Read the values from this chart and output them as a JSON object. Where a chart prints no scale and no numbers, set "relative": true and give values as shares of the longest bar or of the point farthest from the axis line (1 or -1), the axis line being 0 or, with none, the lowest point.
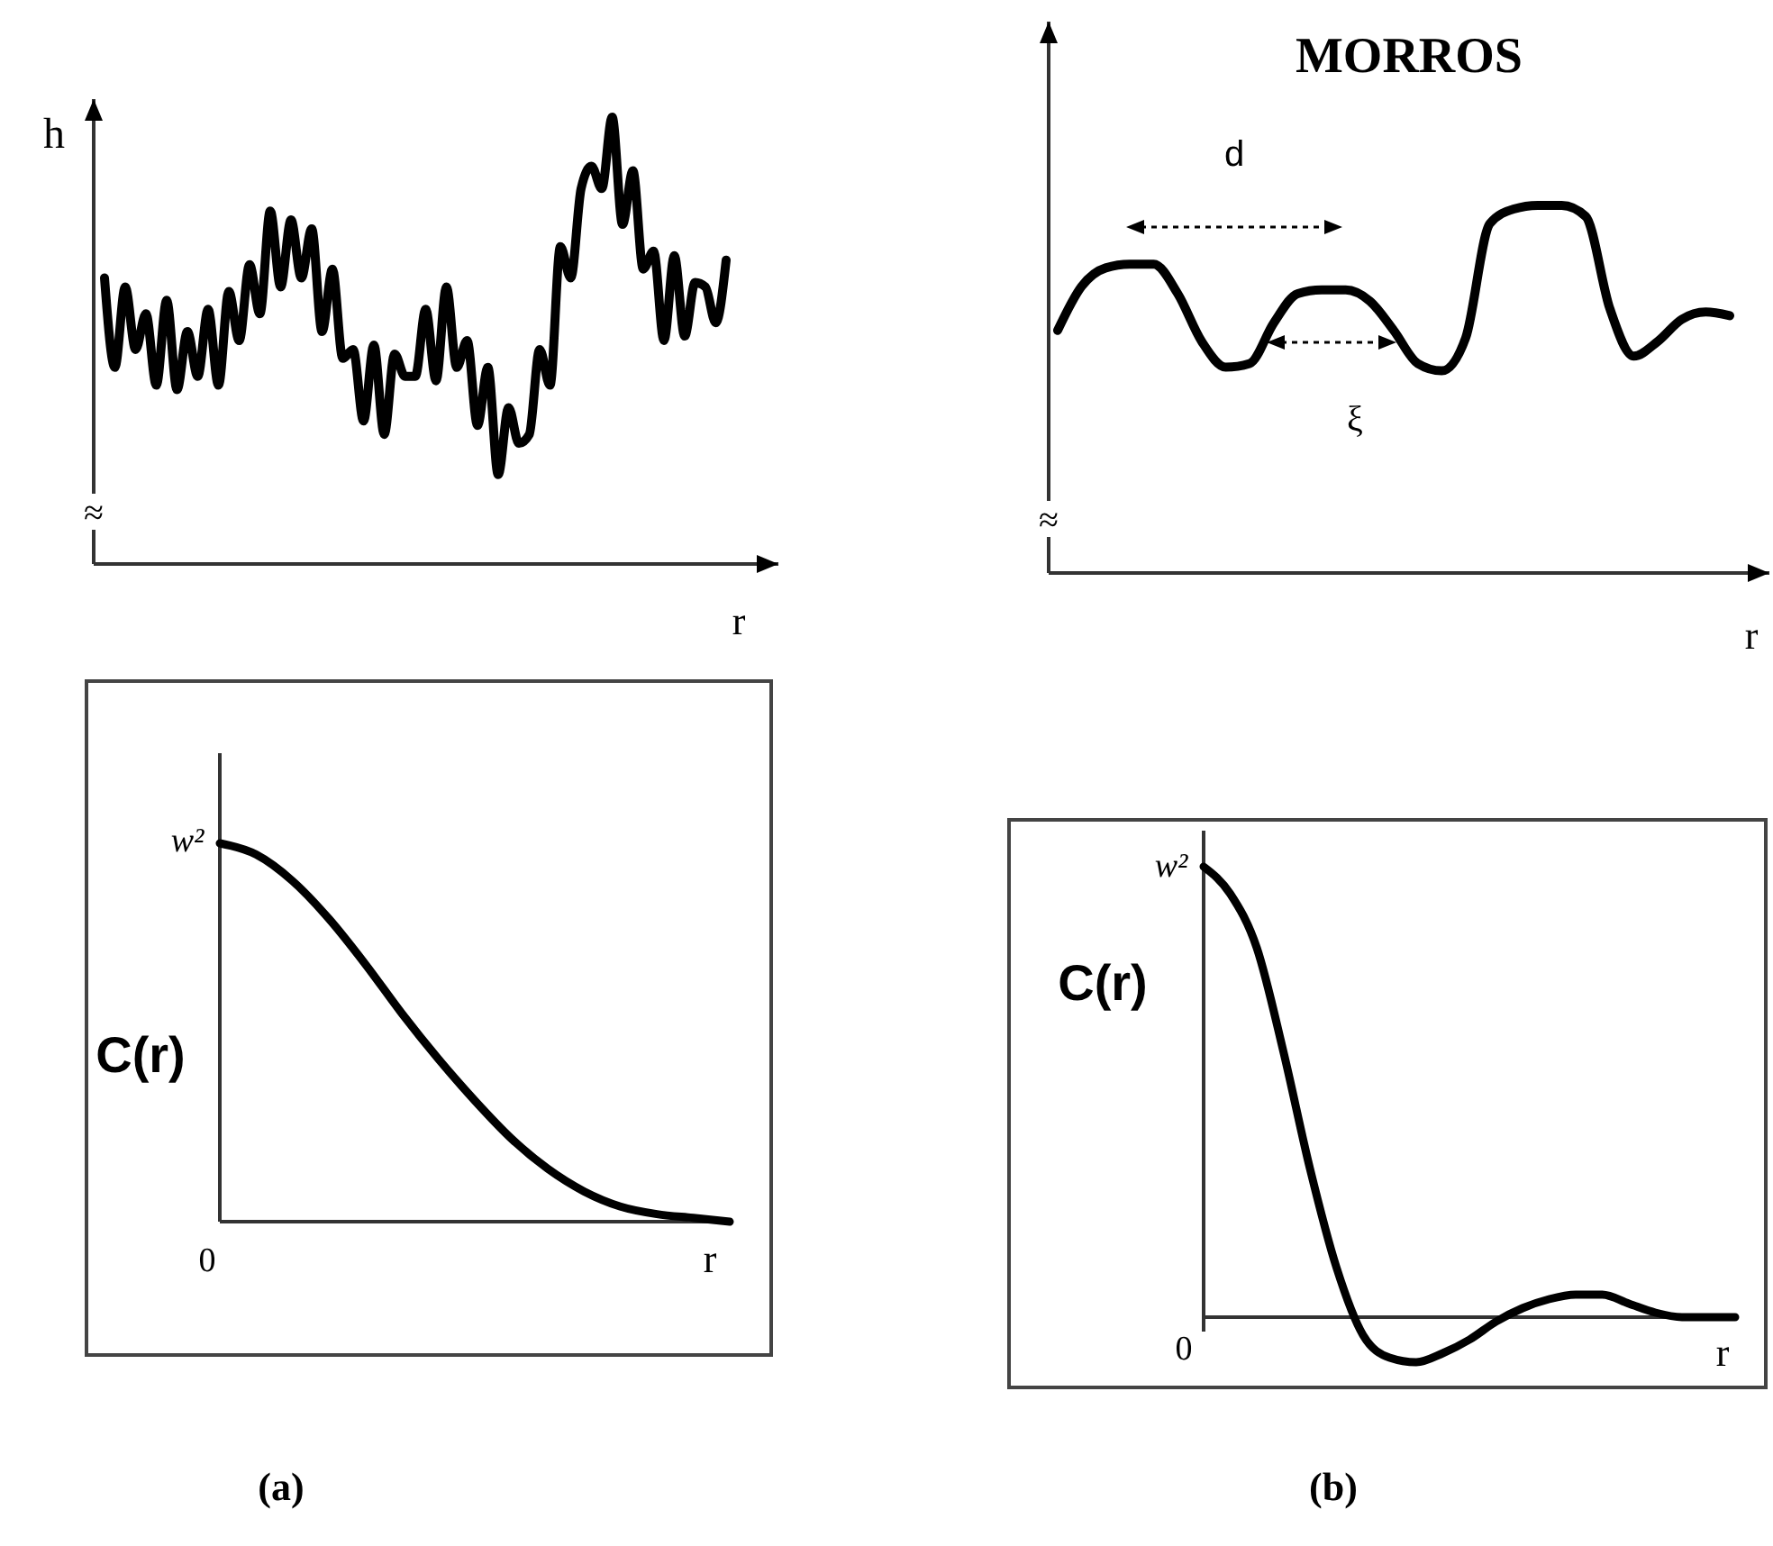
{
  "chart_data": [
    {
      "type": "line",
      "relative": true,
      "ylabel": "h",
      "xlabel": "r",
      "annotations": [
        "≈"
      ],
      "categories": [
        null,
        null,
        null,
        null,
        null,
        null,
        null,
        null,
        null,
        null,
        null,
        null,
        null,
        null,
        null,
        null,
        null,
        null,
        null,
        null,
        null,
        null,
        null,
        null,
        null,
        null,
        null,
        null,
        null,
        null,
        null,
        null,
        null,
        null,
        null,
        null,
        null,
        null,
        null,
        null,
        null,
        null,
        null,
        null,
        null,
        null,
        null,
        null,
        null,
        null,
        null,
        null,
        null,
        null,
        null,
        null,
        null,
        null,
        null,
        null,
        null
      ],
      "series": [
        {
          "color": "#000000",
          "values": [
            0.64,
            0.44,
            0.62,
            0.48,
            0.56,
            0.4,
            0.59,
            0.39,
            0.52,
            0.42,
            0.57,
            0.4,
            0.61,
            0.5,
            0.67,
            0.56,
            0.79,
            0.62,
            0.77,
            0.64,
            0.75,
            0.52,
            0.66,
            0.46,
            0.48,
            0.32,
            0.49,
            0.29,
            0.47,
            0.42,
            0.42,
            0.57,
            0.41,
            0.62,
            0.44,
            0.5,
            0.31,
            0.44,
            0.2,
            0.35,
            0.27,
            0.29,
            0.48,
            0.4,
            0.71,
            0.64,
            0.84,
            0.89,
            0.84,
            1.0,
            0.76,
            0.88,
            0.66,
            0.7,
            0.5,
            0.69,
            0.51,
            0.63,
            0.62,
            0.54,
            0.68
          ]
        }
      ]
    },
    {
      "type": "line",
      "relative": true,
      "title": "MORROS",
      "xlabel": "r",
      "annotations": [
        "d",
        "ξ",
        "≈"
      ],
      "categories": [
        null,
        null,
        null,
        null,
        null,
        null,
        null,
        null,
        null,
        null,
        null,
        null,
        null,
        null,
        null,
        null,
        null,
        null,
        null,
        null,
        null,
        null,
        null,
        null,
        null,
        null,
        null,
        null,
        null
      ],
      "series": [
        {
          "color": "#000000",
          "values": [
            0.66,
            0.78,
            0.83,
            0.84,
            0.84,
            0.76,
            0.63,
            0.56,
            0.57,
            0.68,
            0.76,
            0.77,
            0.77,
            0.74,
            0.66,
            0.57,
            0.55,
            0.64,
            0.95,
            0.99,
            1.0,
            1.0,
            0.97,
            0.72,
            0.59,
            0.63,
            0.69,
            0.71,
            0.7
          ]
        }
      ]
    },
    {
      "type": "line",
      "relative": true,
      "ylabel": "C(r)",
      "xlabel": "r",
      "annotations": [
        "w²",
        "0",
        "(a)"
      ],
      "categories": [
        null,
        null,
        null,
        null,
        null,
        null,
        null,
        null,
        null,
        null,
        null,
        null,
        null,
        null,
        null
      ],
      "series": [
        {
          "color": "#000000",
          "values": [
            1.0,
            0.97,
            0.9,
            0.8,
            0.68,
            0.55,
            0.43,
            0.32,
            0.22,
            0.14,
            0.08,
            0.04,
            0.02,
            0.01,
            0.0
          ]
        }
      ]
    },
    {
      "type": "line",
      "relative": true,
      "ylabel": "C(r)",
      "xlabel": "r",
      "annotations": [
        "w²",
        "0",
        "(b)"
      ],
      "categories": [
        null,
        null,
        null,
        null,
        null,
        null,
        null,
        null,
        null,
        null,
        null,
        null,
        null,
        null,
        null,
        null,
        null,
        null,
        null,
        null,
        null
      ],
      "series": [
        {
          "color": "#000000",
          "values": [
            1.0,
            0.94,
            0.82,
            0.59,
            0.33,
            0.11,
            -0.04,
            -0.09,
            -0.1,
            -0.08,
            -0.05,
            -0.01,
            0.02,
            0.04,
            0.05,
            0.05,
            0.03,
            0.01,
            0.0,
            0.0,
            0.0
          ]
        }
      ]
    }
  ]
}
